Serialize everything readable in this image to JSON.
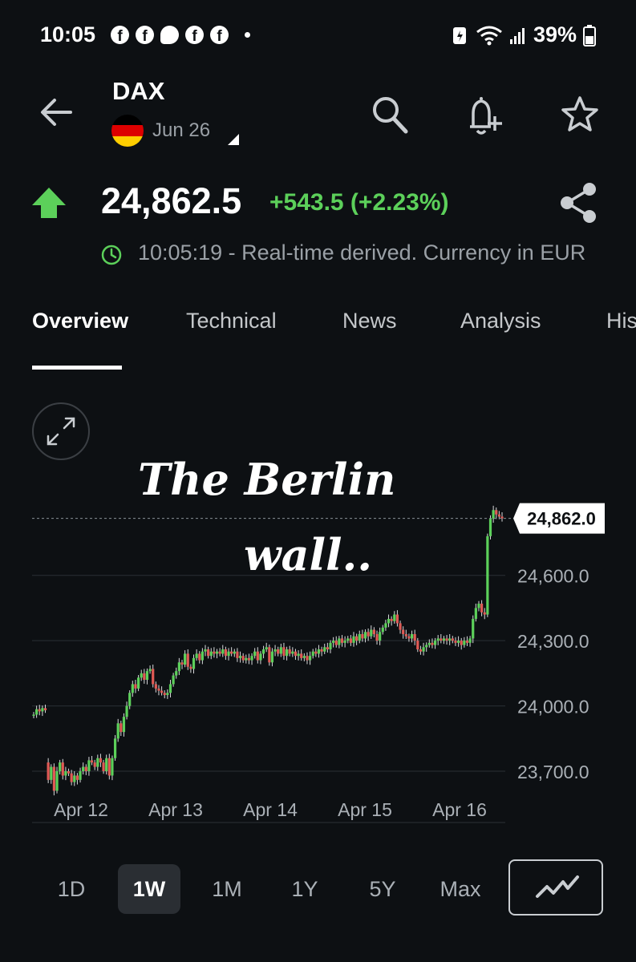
{
  "status_bar": {
    "time": "10:05",
    "battery": "39%"
  },
  "header": {
    "title": "DAX",
    "date": "Jun 26"
  },
  "quote": {
    "price": "24,862.5",
    "change": "+543.5 (+2.23%)",
    "realtime_note": "10:05:19 - Real-time derived. Currency in EUR"
  },
  "tabs": [
    "Overview",
    "Technical",
    "News",
    "Analysis",
    "His"
  ],
  "overlay": {
    "line1": "The Berlin",
    "line2": "wall.."
  },
  "chart_data": {
    "type": "candlestick",
    "x_tick_labels": [
      "Apr 12",
      "Apr 13",
      "Apr 14",
      "Apr 15",
      "Apr 16"
    ],
    "y_tick_labels": [
      "24,600.0",
      "24,300.0",
      "24,000.0",
      "23,700.0"
    ],
    "y_ticks": [
      24600,
      24300,
      24000,
      23700
    ],
    "ylim": [
      23560,
      24960
    ],
    "last_price_label": "24,862.0",
    "last_price": 24862,
    "colors": {
      "up": "#5cd05a",
      "down": "#e05a55",
      "grid": "#2a2f35"
    },
    "series": [
      {
        "values": [
          23960,
          23985,
          23975,
          23990,
          23980,
          23660,
          23720,
          23610,
          23700,
          23740,
          23680,
          23700,
          23690,
          23650,
          23680,
          23660,
          23700,
          23720,
          23700,
          23750,
          23740,
          23720,
          23760,
          23740,
          23700,
          23760,
          23680,
          23760,
          23850,
          23920,
          23880,
          23950,
          24000,
          24060,
          24100,
          24080,
          24130,
          24150,
          24120,
          24160,
          24170,
          24100,
          24080,
          24070,
          24060,
          24050,
          24060,
          24100,
          24140,
          24160,
          24200,
          24190,
          24240,
          24180,
          24170,
          24220,
          24240,
          24210,
          24250,
          24260,
          24230,
          24250,
          24240,
          24250,
          24240,
          24260,
          24230,
          24250,
          24240,
          24250,
          24220,
          24230,
          24210,
          24220,
          24210,
          24230,
          24250,
          24210,
          24240,
          24260,
          24270,
          24200,
          24250,
          24260,
          24240,
          24270,
          24230,
          24260,
          24240,
          24250,
          24230,
          24240,
          24220,
          24230,
          24210,
          24230,
          24250,
          24240,
          24260,
          24250,
          24270,
          24260,
          24290,
          24300,
          24280,
          24310,
          24290,
          24300,
          24310,
          24290,
          24320,
          24300,
          24330,
          24310,
          24340,
          24320,
          24350,
          24330,
          24300,
          24340,
          24360,
          24380,
          24400,
          24390,
          24420,
          24380,
          24350,
          24330,
          24320,
          24310,
          24330,
          24300,
          24260,
          24250,
          24270,
          24280,
          24290,
          24280,
          24300,
          24310,
          24300,
          24310,
          24300,
          24310,
          24300,
          24290,
          24300,
          24280,
          24300,
          24290,
          24310,
          24400,
          24450,
          24470,
          24430,
          24420,
          24780,
          24860,
          24900,
          24880,
          24870,
          24862
        ]
      }
    ]
  },
  "ranges": [
    "1D",
    "1W",
    "1M",
    "1Y",
    "5Y",
    "Max"
  ],
  "active_range": "1W"
}
